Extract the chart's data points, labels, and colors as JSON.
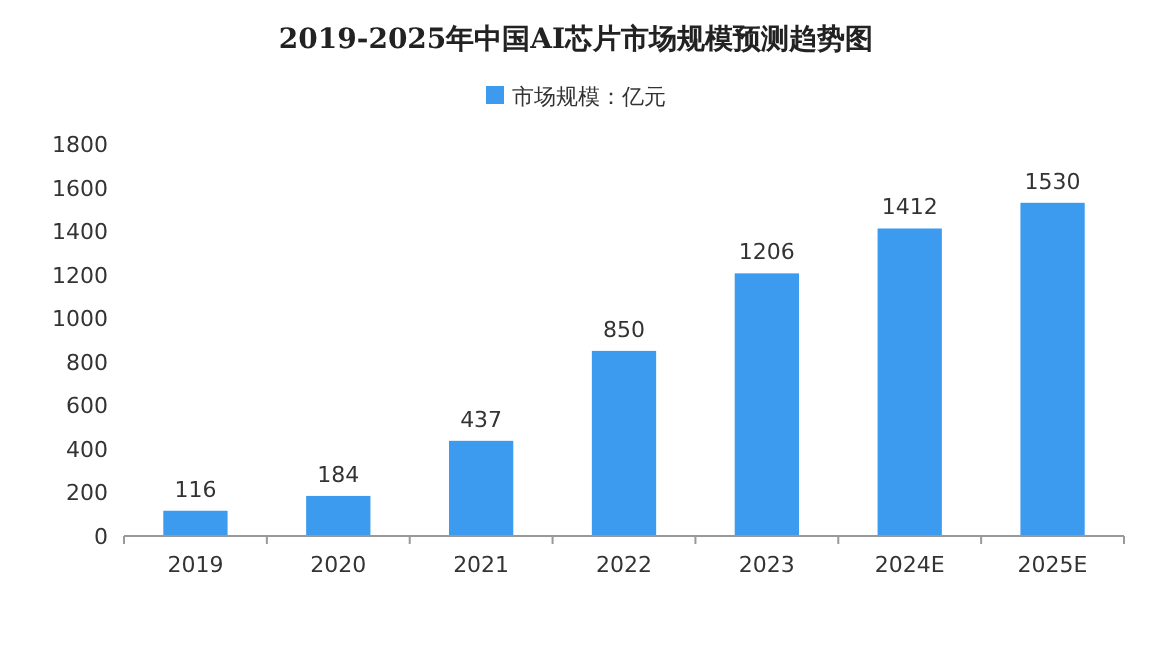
{
  "chart_data": {
    "type": "bar",
    "title": "2019-2025年中国AI芯片市场规模预测趋势图",
    "categories": [
      "2019",
      "2020",
      "2021",
      "2022",
      "2023",
      "2024E",
      "2025E"
    ],
    "series": [
      {
        "name": "市场规模：亿元",
        "color": "#3d9bef",
        "values": [
          116,
          184,
          437,
          850,
          1206,
          1412,
          1530
        ]
      }
    ],
    "ylim": [
      0,
      1800
    ],
    "yticks": [
      0,
      200,
      400,
      600,
      800,
      1000,
      1200,
      1400,
      1600,
      1800
    ],
    "data_labels": true,
    "legend": "top"
  }
}
